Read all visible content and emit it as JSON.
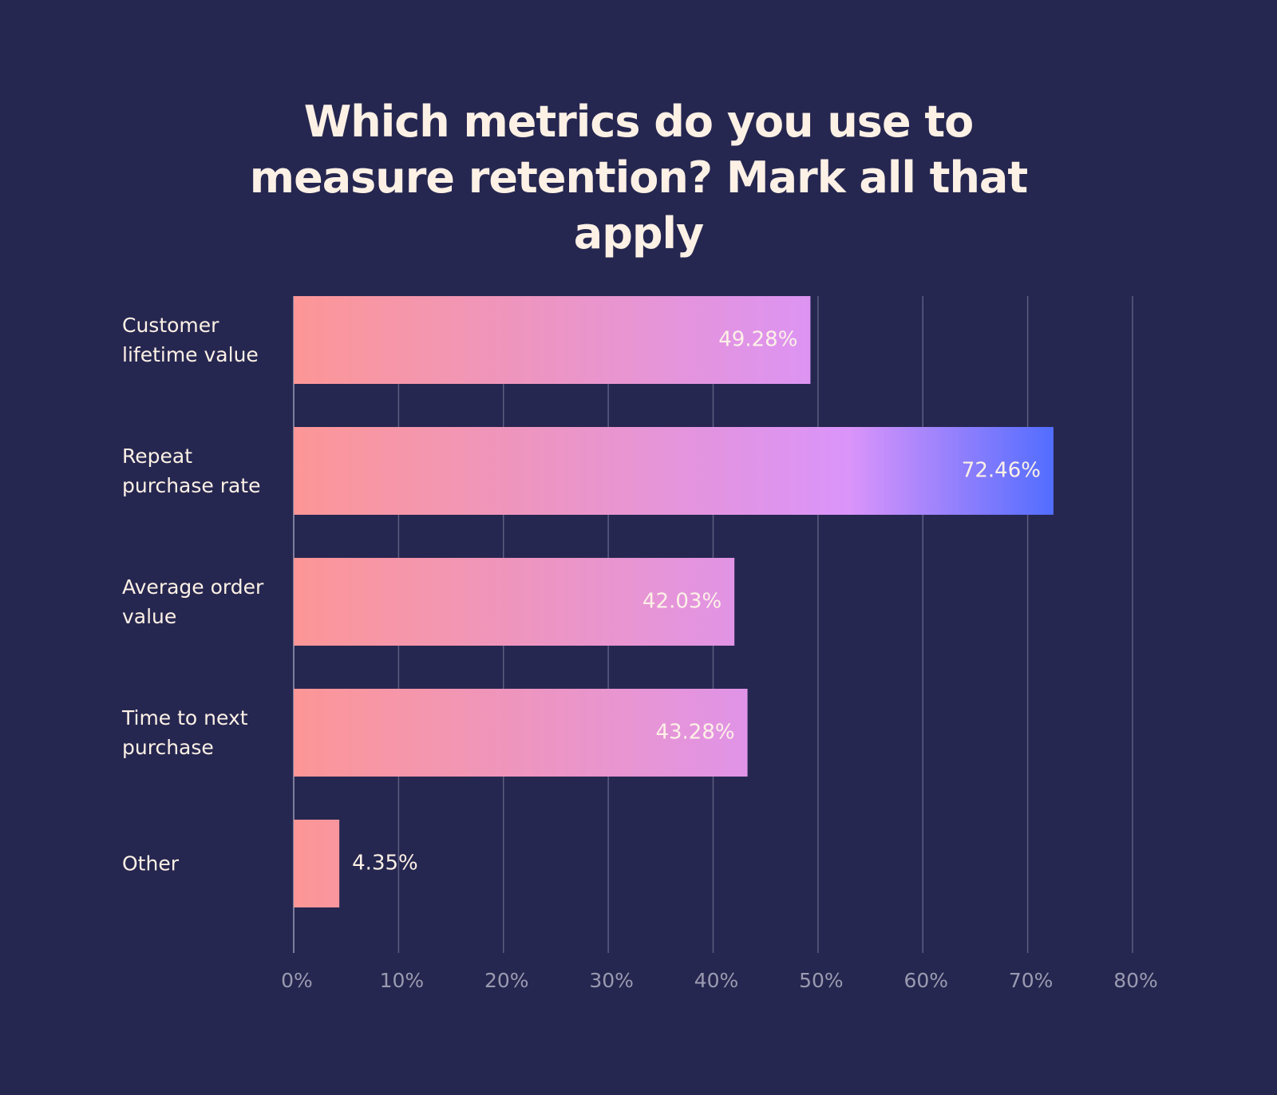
{
  "chart_data": {
    "type": "hbar",
    "title": "Which metrics do you use to measure retention? Mark all that apply",
    "categories": [
      "Customer lifetime value",
      "Repeat purchase rate",
      "Average order value",
      "Time to next purchase",
      "Other"
    ],
    "values": [
      49.28,
      72.46,
      42.03,
      43.28,
      4.35
    ],
    "value_labels": [
      "49.28%",
      "72.46%",
      "42.03%",
      "43.28%",
      "4.35%"
    ],
    "gradient": [
      "#fc9696",
      "#da94fa",
      "#4a6bff"
    ],
    "xlim": [
      0,
      80
    ],
    "xticks": [
      {
        "value": 0,
        "label": "0%"
      },
      {
        "value": 10,
        "label": "10%"
      },
      {
        "value": 20,
        "label": "20%"
      },
      {
        "value": 30,
        "label": "30%"
      },
      {
        "value": 40,
        "label": "40%"
      },
      {
        "value": 50,
        "label": "50%"
      },
      {
        "value": 60,
        "label": "60%"
      },
      {
        "value": 70,
        "label": "70%"
      },
      {
        "value": 80,
        "label": "80%"
      }
    ],
    "grid": true
  }
}
